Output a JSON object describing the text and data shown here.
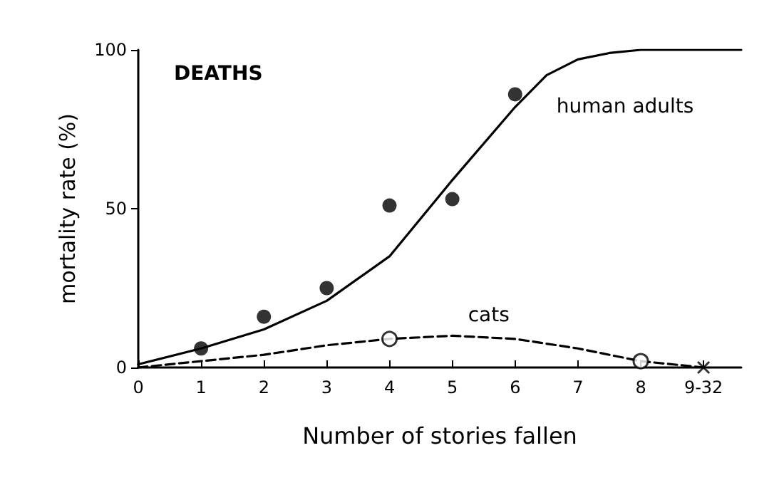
{
  "chart_data": {
    "type": "scatter",
    "xlabel": "Number of stories fallen",
    "ylabel": "mortality rate (%)",
    "annotations": [
      "DEATHS"
    ],
    "xlim": [
      0,
      9.6
    ],
    "xticks": [
      0,
      1,
      2,
      3,
      4,
      5,
      6,
      7,
      8,
      {
        "value": 9,
        "label": "9-32"
      }
    ],
    "ylim": [
      0,
      100
    ],
    "yticks": [
      0,
      50,
      100
    ],
    "grid": false,
    "series": [
      {
        "marker": "circle",
        "color": "#000000",
        "x": [
          1,
          2,
          3,
          4,
          5,
          6
        ],
        "values": [
          6,
          16,
          25,
          51,
          53,
          86
        ]
      },
      {
        "type": "line",
        "name": "human adults",
        "marker": "none",
        "line_style": "solid",
        "color": "#000000",
        "x": [
          0,
          1,
          2,
          3,
          4,
          5,
          6,
          6.5,
          7,
          7.5,
          8,
          9,
          9.6
        ],
        "values": [
          1,
          6,
          12,
          21,
          35,
          59,
          82,
          92,
          97,
          99,
          100,
          100,
          100
        ]
      },
      {
        "marker": "circle",
        "color": "#000000",
        "x": [
          4,
          8
        ],
        "values": [
          9,
          2
        ]
      },
      {
        "marker": "cross",
        "color": "#000000",
        "x": [
          9
        ],
        "values": [
          0
        ]
      },
      {
        "type": "line",
        "name": "cats",
        "marker": "none",
        "line_style": "dashed",
        "color": "#000000",
        "x": [
          0,
          1,
          2,
          3,
          4,
          5,
          6,
          7,
          8,
          9
        ],
        "values": [
          0,
          2,
          4,
          7,
          9,
          10,
          9,
          6,
          2,
          0
        ]
      }
    ]
  }
}
